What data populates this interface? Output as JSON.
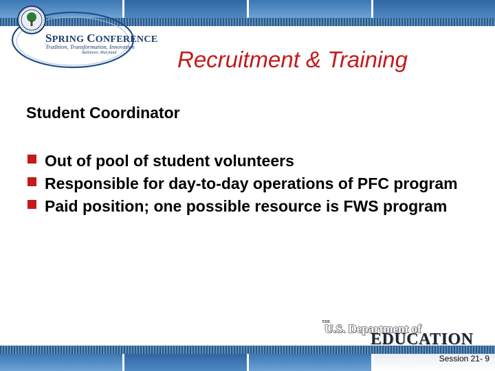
{
  "colors": {
    "title_red": "#c41a1a",
    "band_dark": "#2a5a8c",
    "band_light": "#6f9cc6",
    "logo_navy": "#1b3a6b"
  },
  "logo": {
    "icon": "department-seal-icon",
    "conference_name": "Spring Conference",
    "tagline": "Tradition, Transformation, Innovation",
    "location": "Baltimore, Maryland"
  },
  "slide": {
    "title": "Recruitment & Training",
    "subheading": "Student Coordinator",
    "bullets": [
      "Out of pool of student volunteers",
      "Responsible for day-to-day operations of PFC program",
      "Paid position; one possible resource is FWS program"
    ],
    "bullet_icon": "square-bullet-icon"
  },
  "branding": {
    "the": "THE",
    "department": "U.S. Department of",
    "education": "EDUCATION"
  },
  "footer": {
    "session": "Session 21-  9"
  }
}
